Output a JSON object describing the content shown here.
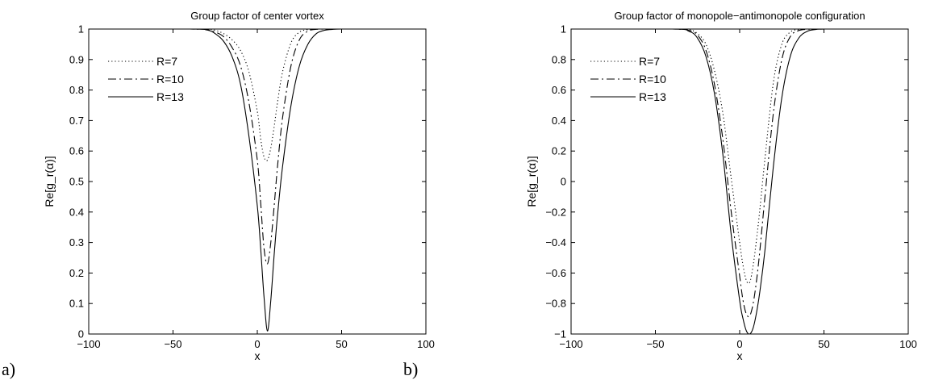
{
  "panels": [
    {
      "tag": "a)"
    },
    {
      "tag": "b)"
    }
  ],
  "chart_data": [
    {
      "type": "line",
      "title": "Group factor of center vortex",
      "xlabel": "x",
      "ylabel": "Re[g_r(α)]",
      "xlim": [
        -100,
        100
      ],
      "ylim": [
        0,
        1
      ],
      "xticks": [
        "-100",
        "-50",
        "0",
        "50",
        "100"
      ],
      "yticks": [
        "0",
        "0.1",
        "0.2",
        "0.3",
        "0.4",
        "0.5",
        "0.6",
        "0.7",
        "0.8",
        "0.9",
        "1"
      ],
      "grid": false,
      "legend": "top-left",
      "x": [
        -100,
        -40,
        -30,
        -25,
        -20,
        -15,
        -10,
        -5,
        0,
        2,
        4,
        6,
        8,
        10,
        12,
        15,
        20,
        25,
        30,
        35,
        40,
        45,
        50,
        60,
        100
      ],
      "series": [
        {
          "name": "R=7",
          "style": "dotted",
          "values": [
            1,
            1,
            0.999,
            0.996,
            0.985,
            0.965,
            0.93,
            0.86,
            0.73,
            0.64,
            0.58,
            0.57,
            0.61,
            0.68,
            0.76,
            0.86,
            0.955,
            0.99,
            0.998,
            1,
            1,
            1,
            1,
            1,
            1
          ]
        },
        {
          "name": "R=10",
          "style": "dashdot",
          "values": [
            1,
            1,
            0.998,
            0.99,
            0.975,
            0.94,
            0.88,
            0.76,
            0.57,
            0.43,
            0.28,
            0.23,
            0.3,
            0.42,
            0.55,
            0.71,
            0.88,
            0.965,
            0.993,
            0.999,
            1,
            1,
            1,
            1,
            1
          ]
        },
        {
          "name": "R=13",
          "style": "solid",
          "values": [
            1,
            1,
            0.997,
            0.985,
            0.96,
            0.91,
            0.82,
            0.65,
            0.42,
            0.28,
            0.12,
            0.01,
            0.11,
            0.26,
            0.39,
            0.55,
            0.75,
            0.88,
            0.95,
            0.985,
            0.996,
            0.999,
            1,
            1,
            1
          ]
        }
      ]
    },
    {
      "type": "line",
      "title": "Group factor of monopole−antimonopole configuration",
      "xlabel": "x",
      "ylabel": "Re[g_r(α)]",
      "xlim": [
        -100,
        100
      ],
      "ylim": [
        -1,
        1
      ],
      "xticks": [
        "-100",
        "-50",
        "0",
        "50",
        "100"
      ],
      "yticks": [
        "-1",
        "-0.8",
        "-0.6",
        "-0.4",
        "-0.2",
        "0",
        "0.2",
        "0.4",
        "0.6",
        "0.8",
        "1"
      ],
      "grid": false,
      "legend": "top-left",
      "x": [
        -100,
        -40,
        -30,
        -25,
        -20,
        -15,
        -10,
        -5,
        0,
        2,
        4,
        6,
        8,
        10,
        12,
        15,
        20,
        25,
        30,
        35,
        40,
        45,
        50,
        60,
        100
      ],
      "series": [
        {
          "name": "R=7",
          "style": "dotted",
          "values": [
            1,
            1,
            0.995,
            0.97,
            0.9,
            0.73,
            0.45,
            0.02,
            -0.4,
            -0.55,
            -0.65,
            -0.66,
            -0.55,
            -0.38,
            -0.18,
            0.15,
            0.65,
            0.9,
            0.98,
            0.997,
            1,
            1,
            1,
            1,
            1
          ]
        },
        {
          "name": "R=10",
          "style": "dashdot",
          "values": [
            1,
            1,
            0.99,
            0.96,
            0.86,
            0.64,
            0.28,
            -0.2,
            -0.62,
            -0.78,
            -0.87,
            -0.88,
            -0.8,
            -0.65,
            -0.45,
            -0.1,
            0.45,
            0.8,
            0.95,
            0.99,
            0.998,
            1,
            1,
            1,
            1
          ]
        },
        {
          "name": "R=13",
          "style": "solid",
          "values": [
            1,
            1,
            0.985,
            0.94,
            0.82,
            0.58,
            0.18,
            -0.35,
            -0.78,
            -0.9,
            -0.98,
            -1,
            -0.96,
            -0.86,
            -0.72,
            -0.45,
            0.1,
            0.55,
            0.82,
            0.94,
            0.985,
            0.997,
            1,
            1,
            1
          ]
        }
      ]
    }
  ]
}
